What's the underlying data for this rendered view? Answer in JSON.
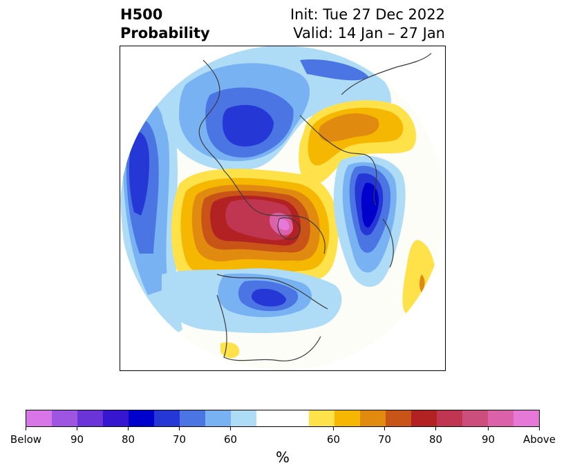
{
  "title": {
    "left_line1": "H500",
    "left_line2": "Probability",
    "right_line1": "Init: Tue 27 Dec 2022",
    "right_line2": "Valid: 14 Jan – 27 Jan"
  },
  "colorbar": {
    "unit": "%",
    "colors": [
      "#d876e8",
      "#9d55e2",
      "#6a34d8",
      "#3716cf",
      "#0000cc",
      "#2537d5",
      "#4a75e2",
      "#78b2f2",
      "#aedcf7",
      "#ffffff",
      "#ffe14a",
      "#f5b700",
      "#e08a10",
      "#c95418",
      "#b22222",
      "#c03550",
      "#cc4e7d",
      "#db62a8",
      "#e678d8"
    ],
    "ticks": [
      {
        "label": "Below"
      },
      {
        "label": "90"
      },
      {
        "label": "80"
      },
      {
        "label": "70"
      },
      {
        "label": "60"
      },
      {
        "label": "60"
      },
      {
        "label": "70"
      },
      {
        "label": "80"
      },
      {
        "label": "90"
      },
      {
        "label": "Above"
      }
    ]
  }
}
